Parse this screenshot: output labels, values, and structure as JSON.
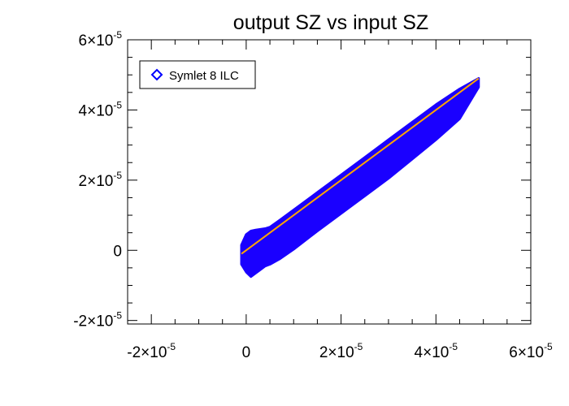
{
  "chart_data": {
    "type": "scatter",
    "title": "output SZ vs input SZ",
    "xlabel": "",
    "ylabel": "",
    "xlim": [
      -2.5e-05,
      6e-05
    ],
    "ylim": [
      -2.1e-05,
      6e-05
    ],
    "x_ticks": [
      {
        "value": -2e-05,
        "mantissa": "-2×10",
        "exp": "-5"
      },
      {
        "value": 0,
        "mantissa": "0",
        "exp": ""
      },
      {
        "value": 2e-05,
        "mantissa": "2×10",
        "exp": "-5"
      },
      {
        "value": 4e-05,
        "mantissa": "4×10",
        "exp": "-5"
      },
      {
        "value": 6e-05,
        "mantissa": "6×10",
        "exp": "-5"
      }
    ],
    "y_ticks": [
      {
        "value": -2e-05,
        "mantissa": "-2×10",
        "exp": "-5"
      },
      {
        "value": 0,
        "mantissa": "0",
        "exp": ""
      },
      {
        "value": 2e-05,
        "mantissa": "2×10",
        "exp": "-5"
      },
      {
        "value": 4e-05,
        "mantissa": "4×10",
        "exp": "-5"
      },
      {
        "value": 6e-05,
        "mantissa": "6×10",
        "exp": "-5"
      }
    ],
    "minor_tick_step": 5e-06,
    "legend": {
      "position": "top-left",
      "entries": [
        {
          "label": "Symlet 8 ILC",
          "marker": "diamond",
          "color": "#0000ff"
        }
      ]
    },
    "series": [
      {
        "name": "Symlet 8 ILC",
        "marker": "diamond",
        "color": "#1a00ff",
        "x": [
          -1e-06,
          0,
          1e-06,
          2e-06,
          3e-06,
          4e-06,
          5e-06,
          7e-06,
          1e-05,
          1.5e-05,
          2e-05,
          2.5e-05,
          3e-05,
          3.5e-05,
          4e-05,
          4.5e-05,
          4.9e-05
        ],
        "upper": [
          1.5e-06,
          4.5e-06,
          5.5e-06,
          5.8e-06,
          6e-06,
          6.2e-06,
          6.6e-06,
          8.5e-06,
          1.15e-05,
          1.65e-05,
          2.15e-05,
          2.65e-05,
          3.15e-05,
          3.65e-05,
          4.15e-05,
          4.6e-05,
          4.9e-05
        ],
        "lower": [
          -4e-06,
          -6.2e-06,
          -7.5e-06,
          -6.5e-06,
          -5.5e-06,
          -4.5e-06,
          -4e-06,
          -2.5e-06,
          3e-07,
          5.5e-06,
          1.05e-05,
          1.55e-05,
          2.05e-05,
          2.6e-05,
          3.15e-05,
          3.75e-05,
          4.65e-05
        ]
      }
    ],
    "fit_line": {
      "color": "#ffa500",
      "x": [
        -1e-06,
        4.9e-05
      ],
      "y": [
        -1e-06,
        4.9e-05
      ]
    }
  }
}
